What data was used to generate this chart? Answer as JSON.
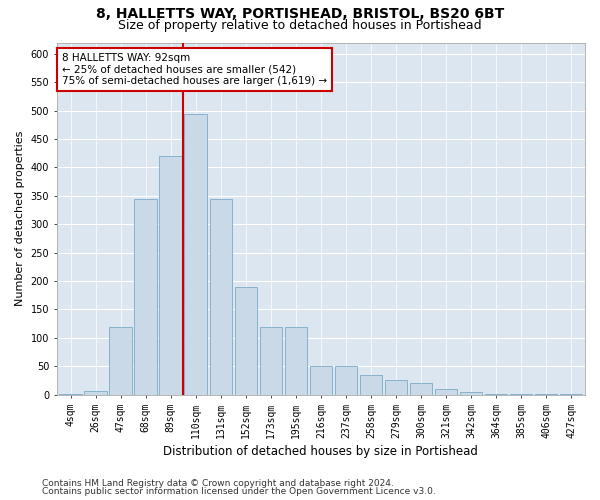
{
  "title1": "8, HALLETTS WAY, PORTISHEAD, BRISTOL, BS20 6BT",
  "title2": "Size of property relative to detached houses in Portishead",
  "xlabel": "Distribution of detached houses by size in Portishead",
  "ylabel": "Number of detached properties",
  "categories": [
    "4sqm",
    "26sqm",
    "47sqm",
    "68sqm",
    "89sqm",
    "110sqm",
    "131sqm",
    "152sqm",
    "173sqm",
    "195sqm",
    "216sqm",
    "237sqm",
    "258sqm",
    "279sqm",
    "300sqm",
    "321sqm",
    "342sqm",
    "364sqm",
    "385sqm",
    "406sqm",
    "427sqm"
  ],
  "values": [
    2,
    7,
    120,
    345,
    420,
    495,
    345,
    190,
    120,
    120,
    50,
    50,
    35,
    25,
    20,
    10,
    5,
    2,
    2,
    2,
    2
  ],
  "bar_color": "#c9d9e8",
  "bar_edge_color": "#7baac8",
  "vline_color": "#cc0000",
  "vline_bar_index": 4,
  "annotation_text": "8 HALLETTS WAY: 92sqm\n← 25% of detached houses are smaller (542)\n75% of semi-detached houses are larger (1,619) →",
  "annotation_box_color": "#ffffff",
  "annotation_box_edge": "#cc0000",
  "ylim": [
    0,
    620
  ],
  "yticks": [
    0,
    50,
    100,
    150,
    200,
    250,
    300,
    350,
    400,
    450,
    500,
    550,
    600
  ],
  "background_color": "#dce6f0",
  "grid_color": "#ffffff",
  "footer1": "Contains HM Land Registry data © Crown copyright and database right 2024.",
  "footer2": "Contains public sector information licensed under the Open Government Licence v3.0.",
  "title1_fontsize": 10,
  "title2_fontsize": 9,
  "xlabel_fontsize": 8.5,
  "ylabel_fontsize": 8,
  "tick_fontsize": 7,
  "annotation_fontsize": 7.5,
  "footer_fontsize": 6.5
}
